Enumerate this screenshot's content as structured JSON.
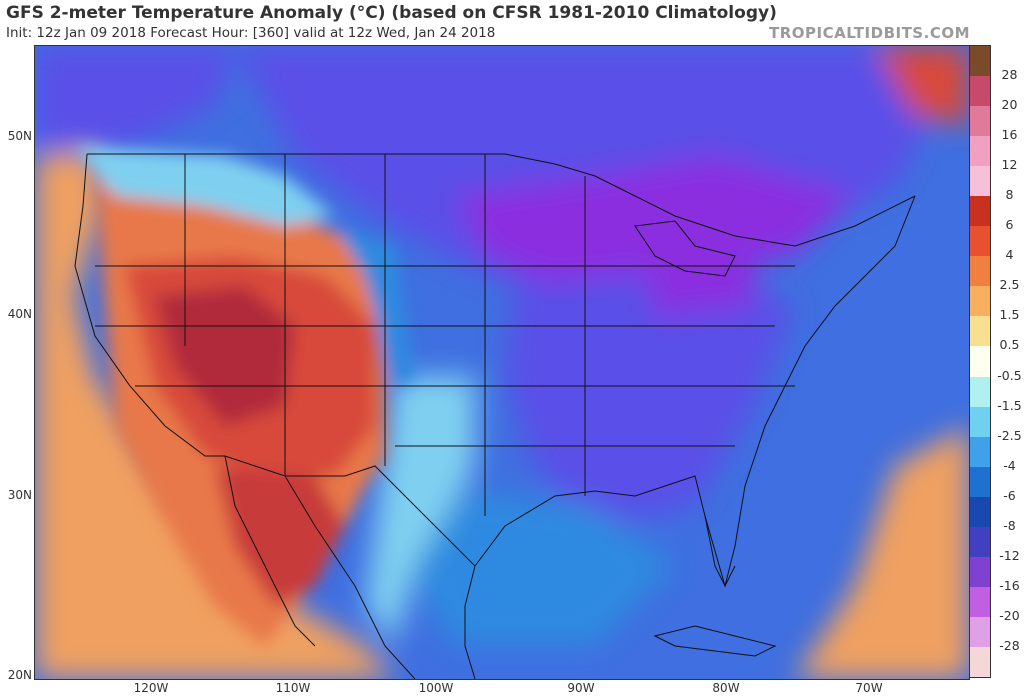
{
  "header": {
    "title": "GFS 2-meter Temperature Anomaly (°C) (based on CFSR 1981-2010 Climatology)",
    "subtitle": "Init: 12z Jan 09 2018   Forecast Hour: [360]   valid at 12z Wed, Jan 24 2018",
    "watermark": "TROPICALTIDBITS.COM"
  },
  "map": {
    "lat_labels": [
      "50N",
      "40N",
      "30N",
      "20N"
    ],
    "lon_labels": [
      "120W",
      "110W",
      "100W",
      "90W",
      "80W",
      "70W"
    ],
    "colors": {
      "ocean": "#3f6fe0",
      "deep_cold": "#8a2fe0",
      "cold": "#5a4fe8",
      "cool": "#2f8ae0",
      "light_cool": "#7fd0f0",
      "warm": "#f0a060",
      "hot": "#d84a3a",
      "very_hot": "#b02a3a",
      "outline": "#111111"
    }
  },
  "colorbar": {
    "labels": [
      "28",
      "20",
      "16",
      "12",
      "8",
      "6",
      "4",
      "2.5",
      "1.5",
      "0.5",
      "-0.5",
      "-1.5",
      "-2.5",
      "-4",
      "-6",
      "-8",
      "-12",
      "-16",
      "-20",
      "-28"
    ],
    "colors": [
      "#7a4a2a",
      "#c84a6a",
      "#e07a9a",
      "#f0a0c0",
      "#f8c0d8",
      "#c83020",
      "#e85030",
      "#f08040",
      "#f8b060",
      "#f8e090",
      "#fffff0",
      "#b0f0f0",
      "#70d0f0",
      "#40a0e8",
      "#2070d0",
      "#1848b0",
      "#4040c0",
      "#8040d0",
      "#c060e0",
      "#e0a0e8",
      "#f4d8d8"
    ]
  }
}
